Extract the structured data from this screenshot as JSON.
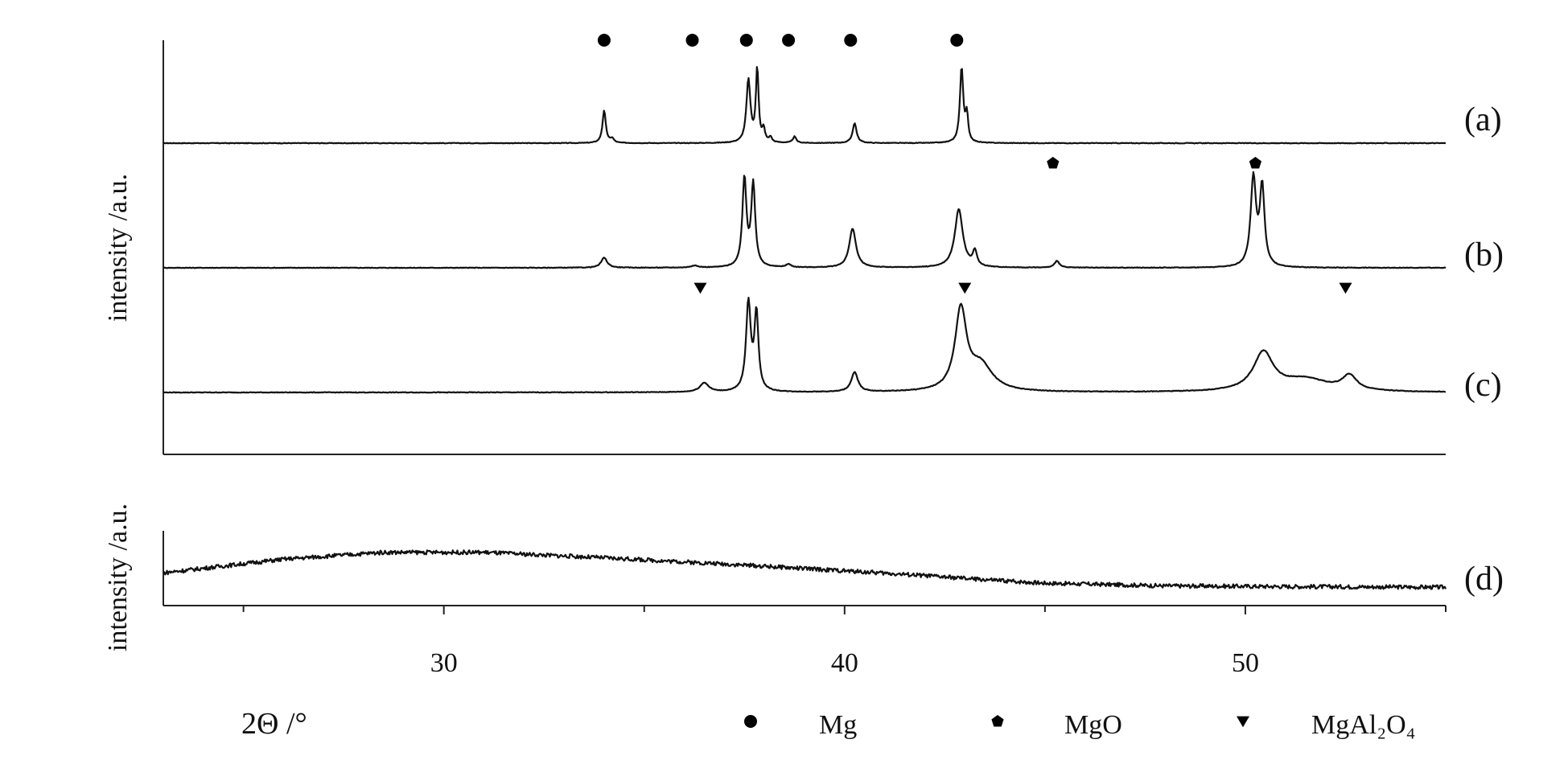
{
  "chart_data": {
    "type": "line",
    "x_axis": {
      "label": "2Θ /°",
      "ticks": [
        30,
        40,
        50
      ],
      "minor_ticks": [
        25,
        35,
        45,
        55
      ],
      "range": [
        23,
        55
      ]
    },
    "panels": [
      {
        "ylabel": "intensity /a.u.",
        "series_labels": [
          "(a)",
          "(b)",
          "(c)"
        ]
      },
      {
        "ylabel": "intensity /a.u.",
        "series_labels": [
          "(d)"
        ]
      }
    ],
    "series": [
      {
        "name": "(a)",
        "baseline": 0,
        "peaks": [
          {
            "x": 34.0,
            "h": 0.31,
            "w": 0.05
          },
          {
            "x": 34.2,
            "h": 0.04,
            "w": 0.05
          },
          {
            "x": 37.6,
            "h": 0.6,
            "w": 0.06
          },
          {
            "x": 37.82,
            "h": 0.71,
            "w": 0.04
          },
          {
            "x": 37.98,
            "h": 0.12,
            "w": 0.04
          },
          {
            "x": 38.15,
            "h": 0.05,
            "w": 0.04
          },
          {
            "x": 38.75,
            "h": 0.06,
            "w": 0.05
          },
          {
            "x": 40.25,
            "h": 0.19,
            "w": 0.06
          },
          {
            "x": 42.92,
            "h": 0.72,
            "w": 0.05
          },
          {
            "x": 43.05,
            "h": 0.25,
            "w": 0.04
          }
        ],
        "markers": [
          {
            "x": 34.0,
            "shape": "circle"
          },
          {
            "x": 36.2,
            "shape": "circle"
          },
          {
            "x": 37.55,
            "shape": "circle"
          },
          {
            "x": 38.6,
            "shape": "circle"
          },
          {
            "x": 40.15,
            "shape": "circle"
          },
          {
            "x": 42.8,
            "shape": "circle"
          }
        ]
      },
      {
        "name": "(b)",
        "baseline": 0,
        "peaks": [
          {
            "x": 34.0,
            "h": 0.1,
            "w": 0.09
          },
          {
            "x": 36.25,
            "h": 0.02,
            "w": 0.1
          },
          {
            "x": 37.5,
            "h": 0.88,
            "w": 0.06
          },
          {
            "x": 37.72,
            "h": 0.82,
            "w": 0.06
          },
          {
            "x": 38.6,
            "h": 0.03,
            "w": 0.08
          },
          {
            "x": 40.2,
            "h": 0.39,
            "w": 0.1
          },
          {
            "x": 42.85,
            "h": 0.58,
            "w": 0.12
          },
          {
            "x": 43.25,
            "h": 0.15,
            "w": 0.06
          },
          {
            "x": 45.3,
            "h": 0.07,
            "w": 0.07
          },
          {
            "x": 50.2,
            "h": 0.88,
            "w": 0.08
          },
          {
            "x": 50.42,
            "h": 0.78,
            "w": 0.07
          }
        ],
        "markers": [
          {
            "x": 45.2,
            "shape": "pentagon"
          },
          {
            "x": 50.25,
            "shape": "pentagon"
          }
        ]
      },
      {
        "name": "(c)",
        "baseline": 0,
        "peaks": [
          {
            "x": 36.5,
            "h": 0.09,
            "w": 0.13
          },
          {
            "x": 37.6,
            "h": 0.86,
            "w": 0.07
          },
          {
            "x": 37.8,
            "h": 0.75,
            "w": 0.06
          },
          {
            "x": 40.25,
            "h": 0.19,
            "w": 0.1
          },
          {
            "x": 42.9,
            "h": 0.78,
            "w": 0.17
          },
          {
            "x": 43.4,
            "h": 0.25,
            "w": 0.35
          },
          {
            "x": 50.45,
            "h": 0.37,
            "w": 0.3
          },
          {
            "x": 51.5,
            "h": 0.12,
            "w": 0.7
          },
          {
            "x": 52.6,
            "h": 0.14,
            "w": 0.22
          }
        ],
        "markers": [
          {
            "x": 36.4,
            "shape": "triangle"
          },
          {
            "x": 43.0,
            "shape": "triangle"
          },
          {
            "x": 52.5,
            "shape": "triangle"
          }
        ]
      },
      {
        "name": "(d)",
        "broad_profile": [
          [
            23,
            0.42
          ],
          [
            26,
            0.62
          ],
          [
            28.5,
            0.72
          ],
          [
            31,
            0.72
          ],
          [
            34,
            0.64
          ],
          [
            37,
            0.55
          ],
          [
            40,
            0.45
          ],
          [
            42,
            0.38
          ],
          [
            43.2,
            0.33
          ],
          [
            45,
            0.27
          ],
          [
            48,
            0.23
          ],
          [
            51,
            0.22
          ],
          [
            55,
            0.21
          ]
        ],
        "noise_amplitude": 0.06
      }
    ],
    "legend": {
      "position": "bottom-right",
      "entries": [
        {
          "shape": "circle",
          "label": "Mg"
        },
        {
          "shape": "pentagon",
          "label": "MgO"
        },
        {
          "shape": "triangle",
          "label": "MgAl₂O₄"
        }
      ]
    },
    "grid": false
  }
}
